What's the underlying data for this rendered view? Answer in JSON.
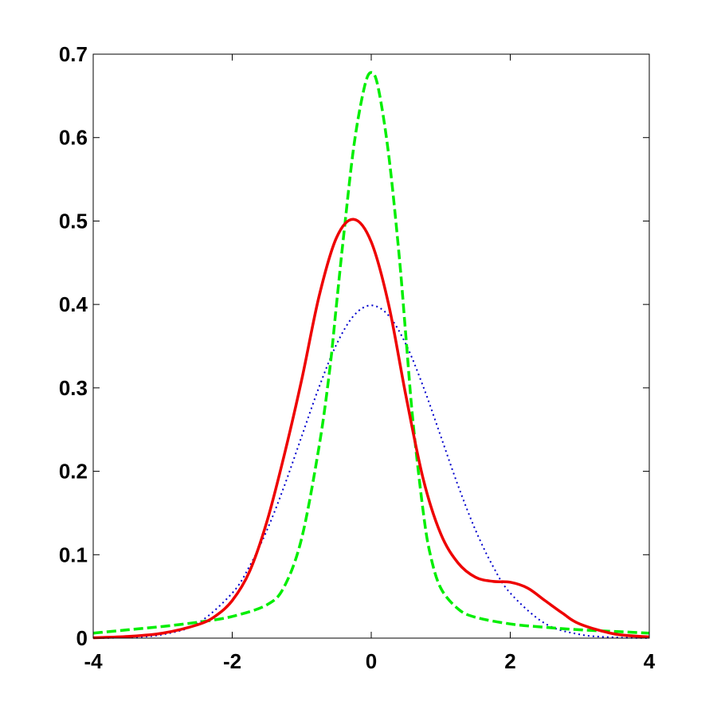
{
  "chart_data": {
    "type": "line",
    "title": "",
    "xlabel": "",
    "ylabel": "",
    "xlim": [
      -4,
      4
    ],
    "ylim": [
      0,
      0.7
    ],
    "x_ticks": [
      -4,
      -2,
      0,
      2,
      4
    ],
    "y_ticks": [
      0,
      0.1,
      0.2,
      0.3,
      0.4,
      0.5,
      0.6,
      0.7
    ],
    "x_tick_labels": [
      "-4",
      "-2",
      "0",
      "2",
      "4"
    ],
    "y_tick_labels": [
      "0",
      "0.1",
      "0.2",
      "0.3",
      "0.4",
      "0.5",
      "0.6",
      "0.7"
    ],
    "grid": false,
    "legend": "none",
    "series": [
      {
        "color": "#0000cc",
        "line_style": "dotted",
        "x": [
          -4.0,
          -3.5,
          -3.0,
          -2.5,
          -2.0,
          -1.75,
          -1.5,
          -1.25,
          -1.0,
          -0.75,
          -0.5,
          -0.25,
          0.0,
          0.25,
          0.5,
          0.75,
          1.0,
          1.25,
          1.5,
          1.75,
          2.0,
          2.5,
          3.0,
          3.5,
          4.0
        ],
        "y": [
          0.0001,
          0.0009,
          0.0044,
          0.0175,
          0.054,
          0.0863,
          0.1295,
          0.1826,
          0.242,
          0.3011,
          0.3521,
          0.3867,
          0.3989,
          0.3867,
          0.3521,
          0.3011,
          0.242,
          0.1826,
          0.1295,
          0.0863,
          0.054,
          0.0175,
          0.0044,
          0.0009,
          0.0001
        ]
      },
      {
        "color": "#00ee00",
        "line_style": "dashed",
        "x": [
          -4.0,
          -3.5,
          -3.0,
          -2.5,
          -2.0,
          -1.5,
          -1.25,
          -1.0,
          -0.75,
          -0.6,
          -0.5,
          -0.4,
          -0.25,
          -0.1,
          0.0,
          0.1,
          0.25,
          0.4,
          0.5,
          0.6,
          0.75,
          0.85,
          1.0,
          1.25,
          1.5,
          2.0,
          2.5,
          3.0,
          3.5,
          4.0
        ],
        "y": [
          0.006,
          0.01,
          0.014,
          0.019,
          0.026,
          0.04,
          0.062,
          0.12,
          0.23,
          0.32,
          0.4,
          0.48,
          0.59,
          0.66,
          0.678,
          0.66,
          0.58,
          0.46,
          0.36,
          0.26,
          0.15,
          0.1,
          0.06,
          0.035,
          0.025,
          0.017,
          0.013,
          0.01,
          0.008,
          0.006
        ]
      },
      {
        "color": "#ee0000",
        "line_style": "solid",
        "x": [
          -4.0,
          -3.5,
          -3.0,
          -2.5,
          -2.25,
          -2.0,
          -1.75,
          -1.5,
          -1.25,
          -1.0,
          -0.75,
          -0.5,
          -0.25,
          0.0,
          0.25,
          0.5,
          0.75,
          1.0,
          1.25,
          1.5,
          1.75,
          2.0,
          2.25,
          2.5,
          2.75,
          3.0,
          3.5,
          4.0
        ],
        "y": [
          0.0005,
          0.002,
          0.006,
          0.016,
          0.026,
          0.045,
          0.08,
          0.14,
          0.22,
          0.31,
          0.41,
          0.48,
          0.502,
          0.475,
          0.4,
          0.29,
          0.19,
          0.125,
          0.09,
          0.073,
          0.068,
          0.067,
          0.06,
          0.045,
          0.03,
          0.017,
          0.005,
          0.0015
        ]
      }
    ]
  }
}
